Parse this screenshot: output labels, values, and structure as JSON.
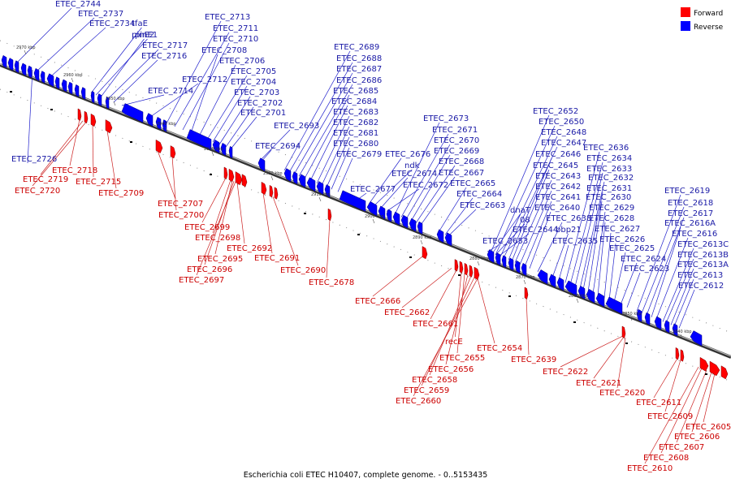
{
  "caption": "Escherichia coli ETEC H10407, complete genome. - 0..5153435",
  "legend": [
    {
      "label": "Forward",
      "color": "#ff0000"
    },
    {
      "label": "Reverse",
      "color": "#0000ff"
    }
  ],
  "colors": {
    "forward": "#ff0000",
    "reverse": "#0000ff",
    "forward_text": "#cc0000",
    "reverse_text": "#1a1aa6",
    "backbone": "#555555"
  },
  "scale_ticks": [
    "2970 kbp",
    "2960 kbp",
    "2950 kbp",
    "2940 kbp",
    "2930 kbp",
    "2920 kbp",
    "2910 kbp",
    "2900 kbp",
    "2890 kbp",
    "2880 kbp",
    "2870 kbp",
    "2860 kbp",
    "2850 kbp",
    "2840 kbp"
  ],
  "reverse_labels": [
    "ETEC_2744",
    "ETEC_2737",
    "ETEC_2734",
    "tfaE",
    "pinE1",
    "pinE2",
    "ETEC_2717",
    "ETEC_2716",
    "ETEC_2714",
    "ETEC_2712",
    "ETEC_2713",
    "ETEC_2711",
    "ETEC_2710",
    "ETEC_2708",
    "ETEC_2706",
    "ETEC_2705",
    "ETEC_2704",
    "ETEC_2703",
    "ETEC_2702",
    "ETEC_2701",
    "ETEC_2693",
    "ETEC_2694",
    "ETEC_2726",
    "ETEC_2689",
    "ETEC_2688",
    "ETEC_2687",
    "ETEC_2686",
    "ETEC_2685",
    "ETEC_2684",
    "ETEC_2683",
    "ETEC_2682",
    "ETEC_2681",
    "ETEC_2680",
    "ETEC_2679",
    "ETEC_2677",
    "ETEC_2676",
    "ndk",
    "ETEC_2674",
    "ETEC_2672",
    "ETEC_2673",
    "ETEC_2671",
    "ETEC_2670",
    "ETEC_2669",
    "ETEC_2668",
    "ETEC_2667",
    "ETEC_2665",
    "ETEC_2664",
    "ETEC_2663",
    "ETEC_2652",
    "ETEC_2650",
    "ETEC_2648",
    "ETEC_2647",
    "ETEC_2646",
    "ETEC_2645",
    "ETEC_2643",
    "ETEC_2642",
    "ETEC_2641",
    "ETEC_2640",
    "ETEC_2638",
    "dnaT",
    "08",
    "ETEC_2644",
    "bbp21",
    "ETEC_2653",
    "ETEC_2635",
    "ETEC_2636",
    "ETEC_2634",
    "ETEC_2633",
    "ETEC_2632",
    "ETEC_2631",
    "ETEC_2630",
    "ETEC_2629",
    "ETEC_2628",
    "ETEC_2627",
    "ETEC_2626",
    "ETEC_2625",
    "ETEC_2624",
    "ETEC_2623",
    "ETEC_2619",
    "ETEC_2618",
    "ETEC_2617",
    "ETEC_2616A",
    "ETEC_2616",
    "ETEC_2613C",
    "ETEC_2613B",
    "ETEC_2613A",
    "ETEC_2613",
    "ETEC_2612"
  ],
  "forward_labels": [
    "ETEC_2718",
    "ETEC_2719",
    "ETEC_2720",
    "ETEC_2715",
    "ETEC_2709",
    "ETEC_2707",
    "ETEC_2700",
    "ETEC_2699",
    "ETEC_2698",
    "ETEC_2692",
    "ETEC_2695",
    "ETEC_2696",
    "ETEC_2697",
    "ETEC_2691",
    "ETEC_2690",
    "ETEC_2678",
    "ETEC_2666",
    "ETEC_2662",
    "ETEC_2661",
    "recE",
    "ETEC_2655",
    "ETEC_2656",
    "ETEC_2658",
    "ETEC_2659",
    "ETEC_2660",
    "ETEC_2654",
    "ETEC_2639",
    "ETEC_2622",
    "ETEC_2621",
    "ETEC_2620",
    "ETEC_2611",
    "ETEC_2609",
    "ETEC_2605",
    "ETEC_2606",
    "ETEC_2607",
    "ETEC_2608",
    "ETEC_2610"
  ]
}
